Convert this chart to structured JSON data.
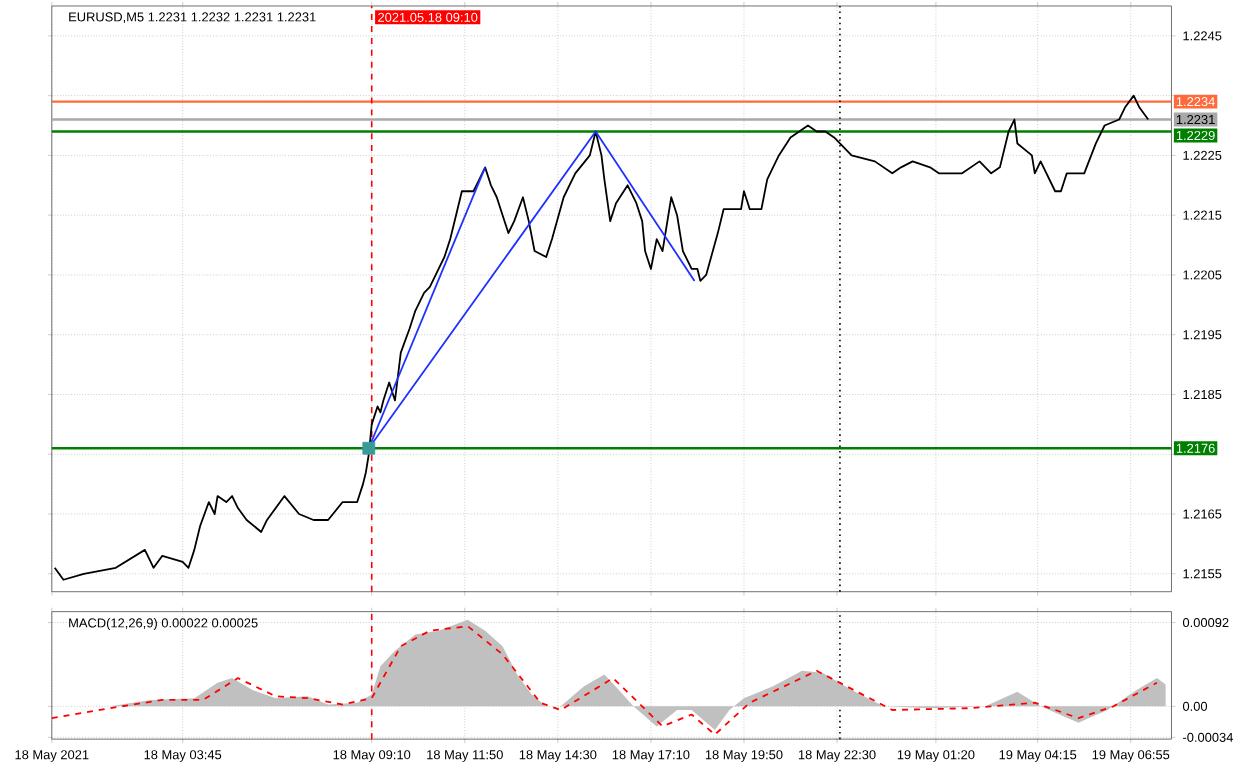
{
  "chart_data": [
    {
      "type": "line",
      "title": "EURUSD,M5 1.2231 1.2232 1.2231 1.2231",
      "grid": true,
      "tick_labels": "y",
      "xlim": [
        "2021-05-18T00:00",
        "2021-05-19T08:05"
      ],
      "ylim": [
        1.2152,
        1.225
      ],
      "xticks": [
        "2021-05-18T00:00",
        "2021-05-18T03:45",
        "2021-05-18T09:10",
        "2021-05-18T11:50",
        "2021-05-18T14:30",
        "2021-05-18T17:10",
        "2021-05-18T19:50",
        "2021-05-18T22:30",
        "2021-05-19T01:20",
        "2021-05-19T04:15",
        "2021-05-19T06:55"
      ],
      "yticks": [
        1.2155,
        1.2165,
        {
          "value": 1.2175,
          "label": null
        },
        1.2185,
        1.2195,
        1.2205,
        1.2215,
        1.2225,
        {
          "value": 1.2235,
          "label": null
        },
        1.2245
      ],
      "series": [
        {
          "color": "#000000",
          "x": [
            "2021-05-18T00:05",
            "2021-05-18T00:20",
            "2021-05-18T00:55",
            "2021-05-18T01:50",
            "2021-05-18T02:40",
            "2021-05-18T02:55",
            "2021-05-18T03:10",
            "2021-05-18T03:45",
            "2021-05-18T03:55",
            "2021-05-18T04:05",
            "2021-05-18T04:15",
            "2021-05-18T04:30",
            "2021-05-18T04:40",
            "2021-05-18T04:45",
            "2021-05-18T05:00",
            "2021-05-18T05:10",
            "2021-05-18T05:20",
            "2021-05-18T05:35",
            "2021-05-18T06:00",
            "2021-05-18T06:10",
            "2021-05-18T06:25",
            "2021-05-18T06:40",
            "2021-05-18T07:05",
            "2021-05-18T07:30",
            "2021-05-18T07:55",
            "2021-05-18T08:20",
            "2021-05-18T08:35",
            "2021-05-18T08:45",
            "2021-05-18T08:55",
            "2021-05-18T09:00",
            "2021-05-18T09:05",
            "2021-05-18T09:10",
            "2021-05-18T09:20",
            "2021-05-18T09:25",
            "2021-05-18T09:30",
            "2021-05-18T09:40",
            "2021-05-18T09:50",
            "2021-05-18T10:00",
            "2021-05-18T10:15",
            "2021-05-18T10:25",
            "2021-05-18T10:40",
            "2021-05-18T10:50",
            "2021-05-18T11:05",
            "2021-05-18T11:15",
            "2021-05-18T11:25",
            "2021-05-18T11:35",
            "2021-05-18T11:45",
            "2021-05-18T12:05",
            "2021-05-18T12:15",
            "2021-05-18T12:25",
            "2021-05-18T12:35",
            "2021-05-18T12:45",
            "2021-05-18T12:55",
            "2021-05-18T13:05",
            "2021-05-18T13:15",
            "2021-05-18T13:30",
            "2021-05-18T13:40",
            "2021-05-18T13:50",
            "2021-05-18T14:10",
            "2021-05-18T14:20",
            "2021-05-18T14:40",
            "2021-05-18T15:00",
            "2021-05-18T15:25",
            "2021-05-18T15:35",
            "2021-05-18T15:45",
            "2021-05-18T15:50",
            "2021-05-18T16:00",
            "2021-05-18T16:10",
            "2021-05-18T16:30",
            "2021-05-18T16:45",
            "2021-05-18T16:55",
            "2021-05-18T17:00",
            "2021-05-18T17:10",
            "2021-05-18T17:20",
            "2021-05-18T17:30",
            "2021-05-18T17:45",
            "2021-05-18T17:55",
            "2021-05-18T18:05",
            "2021-05-18T18:20",
            "2021-05-18T18:30",
            "2021-05-18T18:35",
            "2021-05-18T18:45",
            "2021-05-18T19:05",
            "2021-05-18T19:15",
            "2021-05-18T19:35",
            "2021-05-18T19:45",
            "2021-05-18T19:50",
            "2021-05-18T20:00",
            "2021-05-18T20:20",
            "2021-05-18T20:30",
            "2021-05-18T20:50",
            "2021-05-18T21:10",
            "2021-05-18T21:40",
            "2021-05-18T21:55",
            "2021-05-18T22:10",
            "2021-05-18T22:25",
            "2021-05-18T22:55",
            "2021-05-18T23:35",
            "2021-05-19T00:05",
            "2021-05-19T00:20",
            "2021-05-19T00:40",
            "2021-05-19T01:10",
            "2021-05-19T01:25",
            "2021-05-19T02:05",
            "2021-05-19T02:35",
            "2021-05-19T02:55",
            "2021-05-19T03:10",
            "2021-05-19T03:25",
            "2021-05-19T03:35",
            "2021-05-19T03:40",
            "2021-05-19T04:05",
            "2021-05-19T04:10",
            "2021-05-19T04:20",
            "2021-05-19T04:45",
            "2021-05-19T04:55",
            "2021-05-19T05:05",
            "2021-05-19T05:25",
            "2021-05-19T05:35",
            "2021-05-19T05:55",
            "2021-05-19T06:10",
            "2021-05-19T06:35",
            "2021-05-19T06:45",
            "2021-05-19T07:00",
            "2021-05-19T07:10",
            "2021-05-19T07:25"
          ],
          "values": [
            1.2156,
            1.2154,
            1.2155,
            1.2156,
            1.2159,
            1.2156,
            1.2158,
            1.2157,
            1.2156,
            1.2159,
            1.2163,
            1.2167,
            1.2165,
            1.2168,
            1.2167,
            1.2168,
            1.2166,
            1.2164,
            1.2162,
            1.2164,
            1.2166,
            1.2168,
            1.2165,
            1.2164,
            1.2164,
            1.2167,
            1.2167,
            1.2167,
            1.217,
            1.2172,
            1.2175,
            1.218,
            1.2183,
            1.2182,
            1.2184,
            1.2187,
            1.2184,
            1.2192,
            1.2196,
            1.2199,
            1.2202,
            1.2203,
            1.2206,
            1.2208,
            1.2211,
            1.2215,
            1.2219,
            1.2219,
            1.2221,
            1.2223,
            1.222,
            1.2218,
            1.2215,
            1.2212,
            1.2214,
            1.2218,
            1.2214,
            1.2209,
            1.2208,
            1.2211,
            1.2218,
            1.2222,
            1.2225,
            1.2229,
            1.2225,
            1.2221,
            1.2214,
            1.2217,
            1.222,
            1.2217,
            1.2214,
            1.2209,
            1.2206,
            1.2211,
            1.2209,
            1.2218,
            1.2215,
            1.2209,
            1.2206,
            1.2206,
            1.2204,
            1.2205,
            1.2212,
            1.2216,
            1.2216,
            1.2216,
            1.2219,
            1.2216,
            1.2216,
            1.2221,
            1.2225,
            1.2228,
            1.223,
            1.2229,
            1.2229,
            1.2228,
            1.2225,
            1.2224,
            1.2222,
            1.2223,
            1.2224,
            1.2223,
            1.2222,
            1.2222,
            1.2224,
            1.2222,
            1.2223,
            1.2229,
            1.2231,
            1.2227,
            1.2225,
            1.2222,
            1.2224,
            1.2219,
            1.2219,
            1.2222,
            1.2222,
            1.2222,
            1.2227,
            1.223,
            1.2231,
            1.2233,
            1.2235,
            1.2233,
            1.2231
          ]
        },
        {
          "color": "#1e32ff",
          "x": [
            "2021-05-18T09:05",
            "2021-05-18T12:25"
          ],
          "values": [
            1.2176,
            1.2223
          ]
        },
        {
          "color": "#1e32ff",
          "x": [
            "2021-05-18T09:05",
            "2021-05-18T15:35",
            "2021-05-18T18:25"
          ],
          "values": [
            1.2176,
            1.2229,
            1.2204
          ]
        },
        {
          "type": "scatter",
          "marker": "square",
          "color": "#3a9a9a",
          "x": [
            "2021-05-18T09:05"
          ],
          "values": [
            1.2176
          ]
        }
      ],
      "ref_lines": [
        {
          "axis": "y",
          "value": 1.2234,
          "label": "1.2234",
          "color": "#ff6a3d"
        },
        {
          "axis": "y",
          "value": 1.2231,
          "label": "1.2231",
          "color": "#a8a8a8"
        },
        {
          "axis": "y",
          "value": 1.2229,
          "label": "1.2229",
          "color": "#008000"
        },
        {
          "axis": "y",
          "value": 1.2176,
          "label": "1.2176",
          "color": "#008000"
        },
        {
          "axis": "x",
          "value": "2021-05-18T09:10",
          "label": "2021.05.18 09:10",
          "color": "#ff0000",
          "line_style": "dashed"
        },
        {
          "axis": "x",
          "value": "2021-05-18T22:35",
          "color": "#000000",
          "line_style": "dotted"
        }
      ]
    },
    {
      "type": "line",
      "title": "MACD(12,26,9) 0.00022 0.00025",
      "grid": true,
      "xlim": [
        "2021-05-18T00:00",
        "2021-05-19T08:05"
      ],
      "ylim": [
        -0.00036,
        0.00104
      ],
      "xticks": [
        {
          "value": "2021-05-18T00:00",
          "label": "18 May 2021"
        },
        {
          "value": "2021-05-18T03:45",
          "label": "18 May 03:45"
        },
        {
          "value": "2021-05-18T09:10",
          "label": "18 May 09:10"
        },
        {
          "value": "2021-05-18T11:50",
          "label": "18 May 11:50"
        },
        {
          "value": "2021-05-18T14:30",
          "label": "18 May 14:30"
        },
        {
          "value": "2021-05-18T17:10",
          "label": "18 May 17:10"
        },
        {
          "value": "2021-05-18T19:50",
          "label": "18 May 19:50"
        },
        {
          "value": "2021-05-18T22:30",
          "label": "18 May 22:30"
        },
        {
          "value": "2021-05-19T01:20",
          "label": "19 May 01:20"
        },
        {
          "value": "2021-05-19T04:15",
          "label": "19 May 04:15"
        },
        {
          "value": "2021-05-19T06:55",
          "label": "19 May 06:55"
        }
      ],
      "yticks": [
        {
          "value": -0.00034,
          "label": "-0.00034"
        },
        {
          "value": 0,
          "label": "0.00"
        },
        {
          "value": 0.00092,
          "label": "0.00092"
        }
      ],
      "series": [
        {
          "type": "area",
          "color": "#c0c0c0",
          "x": [
            "2021-05-18T00:00",
            "2021-05-18T01:40",
            "2021-05-18T02:50",
            "2021-05-18T04:05",
            "2021-05-18T04:45",
            "2021-05-18T05:10",
            "2021-05-18T05:45",
            "2021-05-18T06:25",
            "2021-05-18T07:20",
            "2021-05-18T07:55",
            "2021-05-18T08:45",
            "2021-05-18T09:10",
            "2021-05-18T09:25",
            "2021-05-18T09:50",
            "2021-05-18T10:25",
            "2021-05-18T11:05",
            "2021-05-18T11:55",
            "2021-05-18T12:25",
            "2021-05-18T12:55",
            "2021-05-18T13:20",
            "2021-05-18T13:45",
            "2021-05-18T14:10",
            "2021-05-18T14:35",
            "2021-05-18T15:15",
            "2021-05-18T15:50",
            "2021-05-18T16:15",
            "2021-05-18T16:40",
            "2021-05-18T17:20",
            "2021-05-18T17:55",
            "2021-05-18T18:20",
            "2021-05-18T19:00",
            "2021-05-18T19:25",
            "2021-05-18T19:50",
            "2021-05-18T20:40",
            "2021-05-18T21:30",
            "2021-05-18T22:05",
            "2021-05-18T22:55",
            "2021-05-18T23:50",
            "2021-05-19T01:10",
            "2021-05-19T02:45",
            "2021-05-19T03:40",
            "2021-05-19T04:20",
            "2021-05-19T05:25",
            "2021-05-19T06:15",
            "2021-05-19T07:05",
            "2021-05-19T07:40",
            "2021-05-19T07:55"
          ],
          "values": [
            0,
            0,
            7e-05,
            9e-05,
            0.00026,
            0.00031,
            0.00018,
            9e-05,
            0.00011,
            2e-05,
            4e-05,
            0.00013,
            0.00044,
            0.00061,
            0.00079,
            0.00083,
            0.00095,
            0.00083,
            0.00066,
            0.00035,
            0.00013,
            0,
            0,
            0.00022,
            0.00035,
            0.00018,
            0,
            -0.00022,
            -4e-05,
            -4e-05,
            -0.00026,
            -4e-05,
            9e-05,
            0.00022,
            0.00039,
            0.00037,
            0.00018,
            0,
            -2e-05,
            0,
            0.00016,
            0,
            -0.00018,
            -4e-05,
            0.00018,
            0.00031,
            0.00024
          ]
        },
        {
          "color": "#ff0000",
          "line_style": "dashed",
          "x": [
            "2021-05-18T00:00",
            "2021-05-18T01:40",
            "2021-05-18T03:10",
            "2021-05-18T04:20",
            "2021-05-18T05:20",
            "2021-05-18T06:25",
            "2021-05-18T07:20",
            "2021-05-18T08:20",
            "2021-05-18T09:10",
            "2021-05-18T10:00",
            "2021-05-18T10:50",
            "2021-05-18T11:55",
            "2021-05-18T12:55",
            "2021-05-18T14:00",
            "2021-05-18T14:35",
            "2021-05-18T16:05",
            "2021-05-18T16:55",
            "2021-05-18T17:30",
            "2021-05-18T18:20",
            "2021-05-18T19:00",
            "2021-05-18T20:00",
            "2021-05-18T21:55",
            "2021-05-19T00:05",
            "2021-05-19T02:20",
            "2021-05-19T04:10",
            "2021-05-19T05:25",
            "2021-05-19T06:25",
            "2021-05-19T07:40"
          ],
          "values": [
            -0.00013,
            -2e-05,
            7e-05,
            7e-05,
            0.00031,
            0.00011,
            9e-05,
            2e-05,
            9e-05,
            0.00066,
            0.00083,
            0.00088,
            0.00057,
            4e-05,
            -4e-05,
            0.00031,
            0,
            -0.00022,
            -9e-05,
            -0.00031,
            4e-05,
            0.00039,
            -4e-05,
            -2e-05,
            4e-05,
            -0.00013,
            0,
            0.00026
          ]
        }
      ],
      "ref_lines": [
        {
          "axis": "x",
          "value": "2021-05-18T09:10",
          "color": "#ff0000",
          "line_style": "dashed"
        },
        {
          "axis": "x",
          "value": "2021-05-18T22:35",
          "color": "#000000",
          "line_style": "dotted"
        }
      ]
    }
  ]
}
